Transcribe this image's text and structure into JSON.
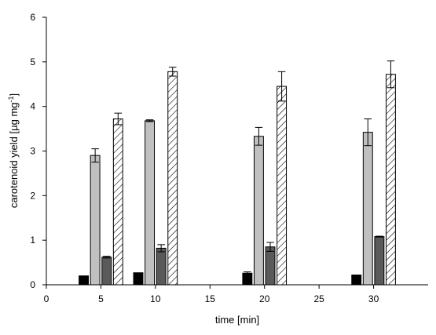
{
  "chart_data": {
    "type": "bar",
    "xlabel": "time  [min]",
    "ylabel_main": "carotenoid yield  [µg mg",
    "ylabel_sup": "-1",
    "ylabel_close": "]",
    "xlim": [
      0,
      35
    ],
    "ylim": [
      0,
      6
    ],
    "xticks": [
      0,
      5,
      10,
      15,
      20,
      25,
      30
    ],
    "yticks": [
      0,
      1,
      2,
      3,
      4,
      5,
      6
    ],
    "x": [
      5,
      10,
      20,
      30
    ],
    "series": [
      {
        "fill": "#000000",
        "pattern": "solid",
        "values": [
          0.2,
          0.27,
          0.26,
          0.22
        ],
        "errors": [
          0,
          0,
          0.03,
          0
        ]
      },
      {
        "fill": "#c0c0c0",
        "pattern": "solid",
        "values": [
          2.9,
          3.68,
          3.33,
          3.42
        ],
        "errors": [
          0.15,
          0.02,
          0.2,
          0.3
        ]
      },
      {
        "fill": "#5a5a5a",
        "pattern": "solid",
        "values": [
          0.62,
          0.82,
          0.85,
          1.08
        ],
        "errors": [
          0.02,
          0.08,
          0.1,
          0.01
        ]
      },
      {
        "fill": "#ffffff",
        "pattern": "hatch",
        "values": [
          3.72,
          4.78,
          4.45,
          4.72
        ],
        "errors": [
          0.13,
          0.1,
          0.33,
          0.3
        ]
      }
    ]
  }
}
